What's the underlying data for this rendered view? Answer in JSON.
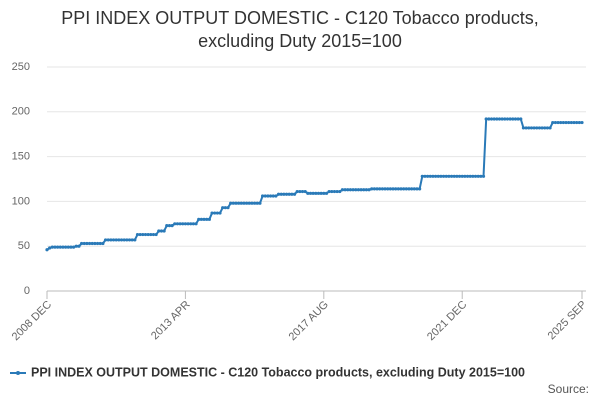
{
  "chart_data": {
    "type": "line",
    "title": "PPI INDEX OUTPUT DOMESTIC - C120 Tobacco products, excluding Duty 2015=100",
    "source": "Source:",
    "categories": [
      "2008 DEC",
      null,
      null,
      null,
      null,
      null,
      null,
      null,
      null,
      null,
      null,
      null,
      null,
      null,
      null,
      null,
      null,
      null,
      null,
      null,
      null,
      null,
      null,
      null,
      null,
      null,
      null,
      null,
      null,
      null,
      null,
      null,
      null,
      null,
      null,
      null,
      null,
      null,
      null,
      null,
      null,
      null,
      null,
      null,
      null,
      null,
      null,
      null,
      null,
      null,
      null,
      null,
      "2013 APR",
      null,
      null,
      null,
      null,
      null,
      null,
      null,
      null,
      null,
      null,
      null,
      null,
      null,
      null,
      null,
      null,
      null,
      null,
      null,
      null,
      null,
      null,
      null,
      null,
      null,
      null,
      null,
      null,
      null,
      null,
      null,
      null,
      null,
      null,
      null,
      null,
      null,
      null,
      null,
      null,
      null,
      null,
      null,
      null,
      null,
      null,
      null,
      null,
      null,
      null,
      null,
      "2017 AUG",
      null,
      null,
      null,
      null,
      null,
      null,
      null,
      null,
      null,
      null,
      null,
      null,
      null,
      null,
      null,
      null,
      null,
      null,
      null,
      null,
      null,
      null,
      null,
      null,
      null,
      null,
      null,
      null,
      null,
      null,
      null,
      null,
      null,
      null,
      null,
      null,
      null,
      null,
      null,
      null,
      null,
      null,
      null,
      null,
      null,
      null,
      null,
      null,
      null,
      null,
      null,
      "2021 DEC",
      null,
      null,
      null,
      null,
      null,
      null,
      null,
      null,
      null,
      null,
      null,
      null,
      null,
      null,
      null,
      null,
      null,
      null,
      null,
      null,
      null,
      null,
      null,
      null,
      null,
      null,
      null,
      null,
      null,
      null,
      null,
      null,
      null,
      null,
      null,
      null,
      null,
      null,
      null,
      null,
      null,
      null,
      null,
      null,
      "2025 SEP"
    ],
    "series": [
      {
        "name": "PPI INDEX OUTPUT DOMESTIC - C120 Tobacco products, excluding Duty 2015=100",
        "color": "#2a7ab8",
        "values": [
          46,
          48,
          49,
          49,
          49,
          49,
          49,
          49,
          49,
          49,
          49,
          50,
          50,
          53,
          53,
          53,
          53,
          53,
          53,
          53,
          53,
          53,
          57,
          57,
          57,
          57,
          57,
          57,
          57,
          57,
          57,
          57,
          57,
          57,
          63,
          63,
          63,
          63,
          63,
          63,
          63,
          63,
          67,
          67,
          67,
          73,
          73,
          73,
          75,
          75,
          75,
          75,
          75,
          75,
          75,
          75,
          75,
          80,
          80,
          80,
          80,
          80,
          87,
          87,
          87,
          87,
          93,
          93,
          93,
          98,
          98,
          98,
          98,
          98,
          98,
          98,
          98,
          98,
          98,
          98,
          98,
          106,
          106,
          106,
          106,
          106,
          106,
          108,
          108,
          108,
          108,
          108,
          108,
          108,
          111,
          111,
          111,
          111,
          109,
          109,
          109,
          109,
          109,
          109,
          109,
          109,
          111,
          111,
          111,
          111,
          111,
          113,
          113,
          113,
          113,
          113,
          113,
          113,
          113,
          113,
          113,
          113,
          114,
          114,
          114,
          114,
          114,
          114,
          114,
          114,
          114,
          114,
          114,
          114,
          114,
          114,
          114,
          114,
          114,
          114,
          114,
          128,
          128,
          128,
          128,
          128,
          128,
          128,
          128,
          128,
          128,
          128,
          128,
          128,
          128,
          128,
          128,
          128,
          128,
          128,
          128,
          128,
          128,
          128,
          128,
          192,
          192,
          192,
          192,
          192,
          192,
          192,
          192,
          192,
          192,
          192,
          192,
          192,
          192,
          182,
          182,
          182,
          182,
          182,
          182,
          182,
          182,
          182,
          182,
          182,
          188,
          188,
          188,
          188,
          188,
          188,
          188,
          188,
          188,
          188,
          188,
          188
        ]
      }
    ],
    "ylim": [
      0,
      250
    ],
    "yticks": [
      0,
      50,
      100,
      150,
      200,
      250
    ],
    "grid": true
  }
}
